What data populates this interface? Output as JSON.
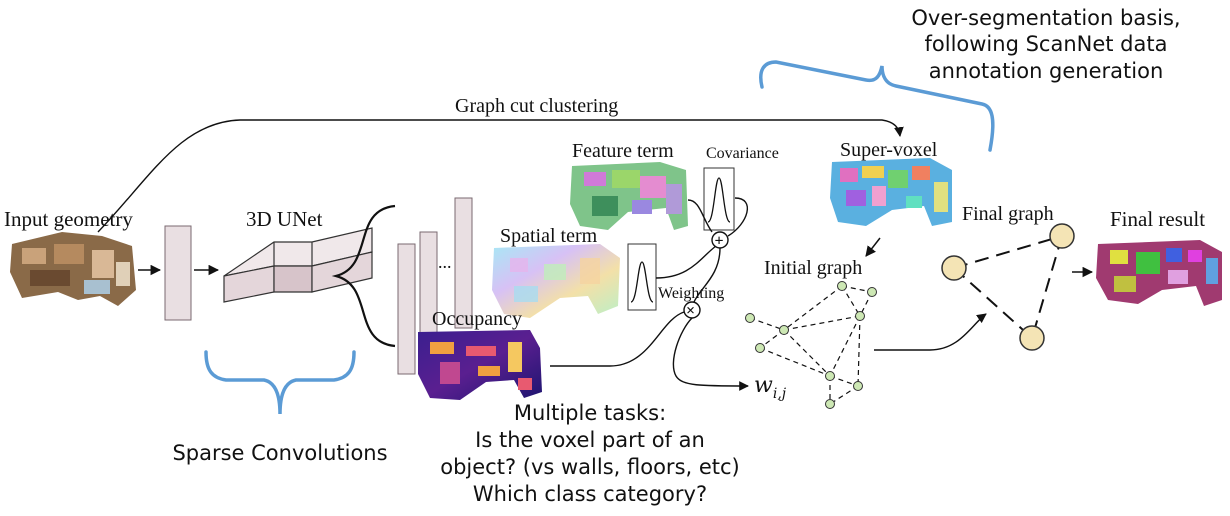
{
  "labels": {
    "input_geometry": "Input geometry",
    "unet": "3D UNet",
    "dots": "...",
    "graph_cut": "Graph cut clustering",
    "feature_term": "Feature term",
    "covariance": "Covariance",
    "spatial_term": "Spatial term",
    "occupancy": "Occupancy",
    "weighting": "Weighting",
    "super_voxel": "Super-voxel",
    "initial_graph": "Initial graph",
    "final_graph": "Final graph",
    "final_result": "Final result",
    "weight_symbol": "w",
    "weight_subscript": "i,j",
    "plus_symbol": "+",
    "times_symbol": "×"
  },
  "annotations": {
    "overseg": [
      "Over-segmentation basis,",
      "following ScanNet data",
      "annotation generation"
    ],
    "sparse_conv": "Sparse Convolutions",
    "multitask": [
      "Multiple tasks:",
      "Is the voxel part of an",
      "object? (vs walls, floors, etc)",
      "Which class category?"
    ]
  },
  "colors": {
    "bracket": "#5b9bd5",
    "layer_fill": "#e9dfe2",
    "layer_stroke": "#7a6a70",
    "node_fill": "#f4e4b5",
    "small_node_fill": "#cde8b4",
    "occupancy": "#2a1a7a",
    "occupancy_hot": "#f0a040",
    "final_result_base": "#a03a70"
  }
}
